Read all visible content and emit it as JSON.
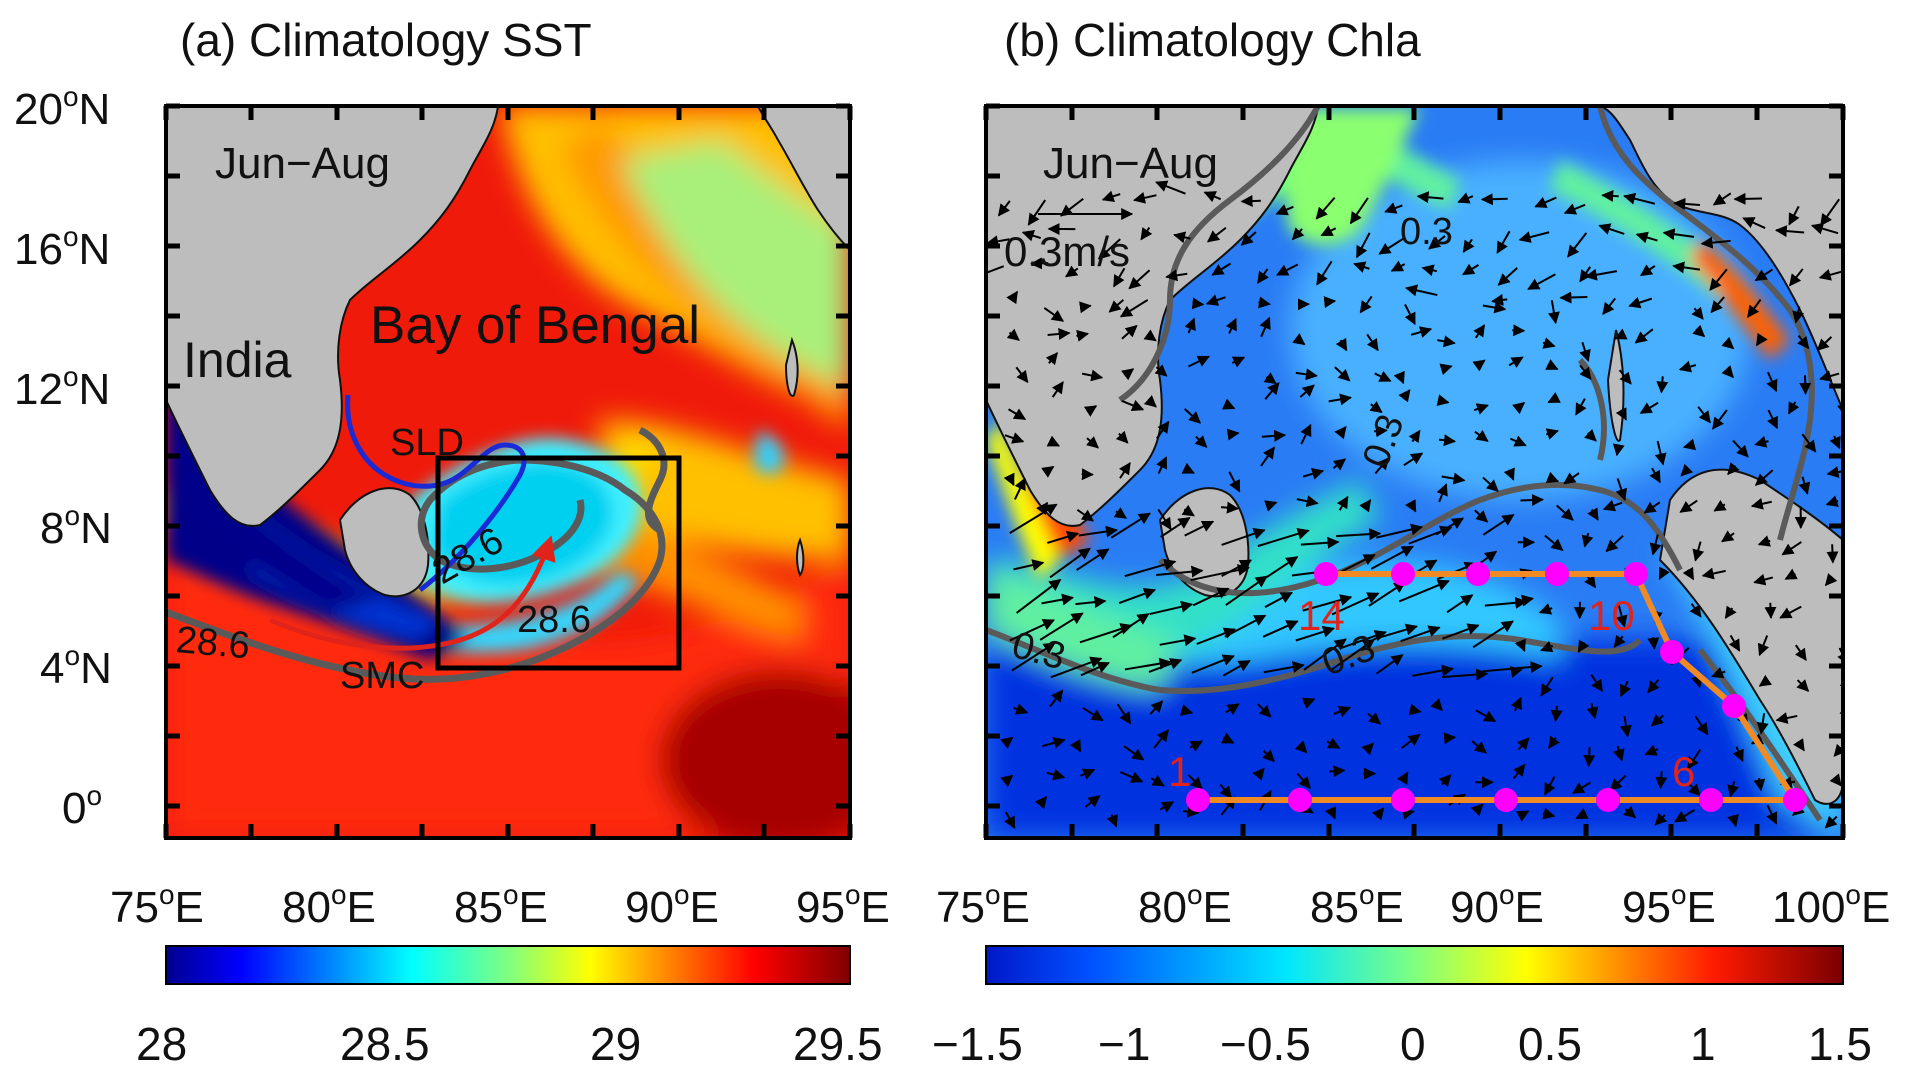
{
  "panel_a": {
    "title": "(a) Climatology SST",
    "season": "Jun−Aug",
    "labels": {
      "india": "India",
      "bay": "Bay of Bengal",
      "sld": "SLD",
      "smc": "SMC"
    },
    "contour_labels": [
      "28.6",
      "28.6",
      "28.6"
    ],
    "lat_ticks": [
      {
        "deg": "20",
        "sup": "o",
        "hem": "N"
      },
      {
        "deg": "16",
        "sup": "o",
        "hem": "N"
      },
      {
        "deg": "12",
        "sup": "o",
        "hem": "N"
      },
      {
        "deg": "8",
        "sup": "o",
        "hem": "N"
      },
      {
        "deg": "4",
        "sup": "o",
        "hem": "N"
      },
      {
        "deg": "0",
        "sup": "o",
        "hem": ""
      }
    ],
    "lon_ticks": [
      {
        "deg": "75",
        "sup": "o",
        "hem": "E"
      },
      {
        "deg": "80",
        "sup": "o",
        "hem": "E"
      },
      {
        "deg": "85",
        "sup": "o",
        "hem": "E"
      },
      {
        "deg": "90",
        "sup": "o",
        "hem": "E"
      },
      {
        "deg": "95",
        "sup": "o",
        "hem": "E"
      }
    ],
    "colorbar_ticks": [
      "28",
      "28.5",
      "29",
      "29.5"
    ],
    "colorbar_range": [
      28,
      29.5
    ]
  },
  "panel_b": {
    "title": "(b) Climatology Chla",
    "season": "Jun−Aug",
    "scale_label": "0.3m/s",
    "contour_labels": [
      "0.3",
      "0.3",
      "0.3",
      "0.3"
    ],
    "station_labels": [
      "1",
      "6",
      "10",
      "14"
    ],
    "lon_ticks": [
      {
        "deg": "75",
        "sup": "o",
        "hem": "E"
      },
      {
        "deg": "80",
        "sup": "o",
        "hem": "E"
      },
      {
        "deg": "85",
        "sup": "o",
        "hem": "E"
      },
      {
        "deg": "90",
        "sup": "o",
        "hem": "E"
      },
      {
        "deg": "95",
        "sup": "o",
        "hem": "E"
      },
      {
        "deg": "100",
        "sup": "o",
        "hem": "E"
      }
    ],
    "colorbar_ticks": [
      "−1.5",
      "−1",
      "−0.5",
      "0",
      "0.5",
      "1",
      "1.5"
    ],
    "colorbar_range": [
      -1.5,
      1.5
    ]
  },
  "colors": {
    "land": "#bdbdbd",
    "contour": "#5a5a5a",
    "station": "#ff00ff",
    "section_line": "#f08a24",
    "sld_path": "#1a2bd6",
    "smc_path": "#e0241b",
    "station_label": "#e0241b"
  }
}
